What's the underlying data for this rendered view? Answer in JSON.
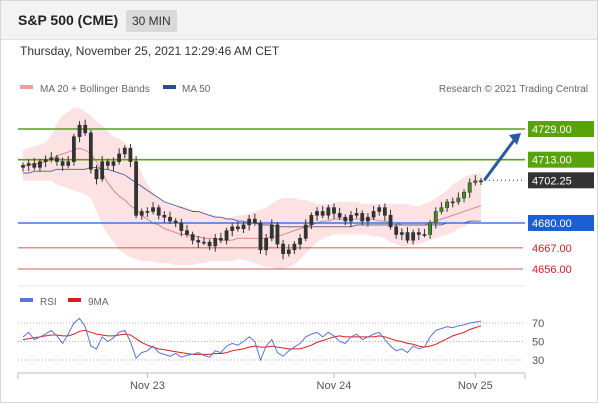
{
  "header": {
    "symbol": "S&P 500 (CME)",
    "timeframe": "30 MIN",
    "timestamp": "Thursday, November 25, 2021 12:29:46 AM CET"
  },
  "legend": {
    "ma20_label": "MA 20 + Bollinger Bands",
    "ma50_label": "MA 50",
    "credit": "Research © 2021 Trading Central",
    "rsi_label": "RSI",
    "ma9_label": "9MA"
  },
  "colors": {
    "resistance": "#58a20a",
    "pivot": "#1a5fd6",
    "support": "#d12020",
    "current": "#333333",
    "candle": "#333333",
    "bollinger_fill": "#fbd8d8",
    "ma20": "#e07c7c",
    "ma50": "#4a5e9c",
    "rsi": "#5b74d8",
    "rsi_ma9": "#d61f1f",
    "arrow": "#2c5aa0"
  },
  "chart_data": [
    {
      "type": "candlestick",
      "title": "S&P 500 (CME) 30 MIN",
      "x_tick_labels": [
        "Nov 23",
        "Nov 24",
        "Nov 25"
      ],
      "ylim": [
        4652,
        4745
      ],
      "levels": [
        {
          "label": "4729.00",
          "value": 4729.0,
          "kind": "resistance"
        },
        {
          "label": "4713.00",
          "value": 4713.0,
          "kind": "resistance"
        },
        {
          "label": "4702.25",
          "value": 4702.25,
          "kind": "current"
        },
        {
          "label": "4680.00",
          "value": 4680.0,
          "kind": "pivot"
        },
        {
          "label": "4667.00",
          "value": 4667.0,
          "kind": "support"
        },
        {
          "label": "4656.00",
          "value": 4656.0,
          "kind": "support"
        }
      ],
      "projection": {
        "from": 4702.25,
        "to": 4729.0,
        "direction": "up"
      },
      "close": [
        4710,
        4711,
        4709,
        4712,
        4713,
        4714,
        4712,
        4710,
        4712,
        4725,
        4731,
        4727,
        4708,
        4703,
        4712,
        4710,
        4712,
        4716,
        4719,
        4712,
        4684,
        4686,
        4686,
        4688,
        4684,
        4683,
        4681,
        4680,
        4676,
        4674,
        4671,
        4670,
        4670,
        4668,
        4672,
        4671,
        4676,
        4678,
        4677,
        4679,
        4682,
        4680,
        4666,
        4672,
        4679,
        4669,
        4664,
        4666,
        4669,
        4672,
        4679,
        4684,
        4686,
        4684,
        4688,
        4685,
        4683,
        4681,
        4684,
        4685,
        4681,
        4683,
        4686,
        4688,
        4684,
        4678,
        4674,
        4675,
        4671,
        4675,
        4674,
        4674,
        4680,
        4686,
        4688,
        4691,
        4691,
        4693,
        4696,
        4701,
        4702,
        4702
      ],
      "bollinger_upper": [
        4718,
        4719,
        4720,
        4721,
        4722,
        4726,
        4732,
        4736,
        4738,
        4740,
        4740,
        4738,
        4736,
        4733,
        4731,
        4728,
        4725,
        4724,
        4722,
        4718,
        4712,
        4706,
        4700,
        4696,
        4693,
        4691,
        4689,
        4688,
        4689,
        4688,
        4687,
        4686,
        4685,
        4684,
        4684,
        4683,
        4683,
        4683,
        4684,
        4684,
        4685,
        4686,
        4687,
        4688,
        4690,
        4692,
        4693,
        4693,
        4693,
        4692,
        4692,
        4691,
        4690,
        4690,
        4690,
        4690,
        4691,
        4691,
        4691,
        4691,
        4690,
        4690,
        4690,
        4690,
        4690,
        4690,
        4690,
        4690,
        4690,
        4689,
        4689,
        4690,
        4691,
        4693,
        4695,
        4697,
        4700,
        4702,
        4704,
        4705,
        4706,
        4706
      ],
      "bollinger_lower": [
        4702,
        4702,
        4702,
        4702,
        4702,
        4702,
        4700,
        4699,
        4698,
        4697,
        4696,
        4695,
        4693,
        4686,
        4679,
        4674,
        4670,
        4666,
        4664,
        4662,
        4661,
        4660,
        4660,
        4660,
        4659,
        4659,
        4659,
        4658,
        4658,
        4658,
        4658,
        4659,
        4659,
        4660,
        4660,
        4660,
        4660,
        4660,
        4661,
        4661,
        4660,
        4659,
        4658,
        4657,
        4657,
        4656,
        4656,
        4657,
        4658,
        4661,
        4664,
        4667,
        4670,
        4672,
        4673,
        4674,
        4674,
        4674,
        4674,
        4674,
        4674,
        4674,
        4673,
        4673,
        4672,
        4670,
        4669,
        4668,
        4668,
        4669,
        4669,
        4670,
        4671,
        4672,
        4673,
        4674,
        4675,
        4677,
        4678,
        4680,
        4681,
        4682
      ],
      "ma20": [
        4710,
        4710,
        4711,
        4711,
        4712,
        4713,
        4715,
        4716,
        4717,
        4718,
        4719,
        4718,
        4716,
        4712,
        4706,
        4701,
        4697,
        4694,
        4692,
        4689,
        4687,
        4684,
        4682,
        4680,
        4679,
        4677,
        4676,
        4675,
        4674,
        4674,
        4673,
        4673,
        4672,
        4672,
        4672,
        4671,
        4671,
        4671,
        4672,
        4672,
        4672,
        4672,
        4672,
        4672,
        4673,
        4673,
        4674,
        4675,
        4676,
        4677,
        4678,
        4679,
        4680,
        4681,
        4681,
        4682,
        4682,
        4682,
        4682,
        4682,
        4682,
        4682,
        4682,
        4681,
        4681,
        4680,
        4680,
        4679,
        4679,
        4679,
        4679,
        4679,
        4680,
        4681,
        4682,
        4683,
        4684,
        4685,
        4686,
        4687,
        4688,
        4689
      ],
      "ma50": [
        4706,
        4706,
        4707,
        4707,
        4707,
        4707,
        4708,
        4708,
        4708,
        4708,
        4708,
        4708,
        4709,
        4709,
        4708,
        4708,
        4707,
        4706,
        4705,
        4703,
        4701,
        4699,
        4697,
        4695,
        4693,
        4691,
        4690,
        4689,
        4688,
        4687,
        4686,
        4686,
        4685,
        4684,
        4683,
        4683,
        4682,
        4682,
        4681,
        4681,
        4680,
        4680,
        4679,
        4679,
        4679,
        4678,
        4678,
        4678,
        4678,
        4678,
        4678,
        4678,
        4678,
        4678,
        4678,
        4678,
        4678,
        4678,
        4678,
        4679,
        4679,
        4679,
        4679,
        4679,
        4679,
        4679,
        4679,
        4679,
        4679,
        4679,
        4679,
        4679,
        4679,
        4679,
        4679,
        4680,
        4680,
        4680,
        4680,
        4681,
        4681,
        4681
      ]
    },
    {
      "type": "line",
      "title": "RSI",
      "y_tick_labels": [
        "70",
        "50",
        "30"
      ],
      "ylim": [
        20,
        80
      ],
      "reference_levels": [
        70,
        50,
        30
      ],
      "series": [
        {
          "name": "RSI",
          "values": [
            55,
            60,
            52,
            55,
            58,
            62,
            56,
            48,
            58,
            70,
            75,
            66,
            45,
            42,
            55,
            50,
            54,
            60,
            62,
            50,
            32,
            38,
            40,
            45,
            38,
            36,
            34,
            37,
            33,
            35,
            36,
            38,
            35,
            33,
            40,
            38,
            45,
            48,
            46,
            50,
            55,
            50,
            30,
            45,
            52,
            38,
            34,
            40,
            44,
            48,
            55,
            58,
            60,
            55,
            60,
            56,
            50,
            48,
            55,
            58,
            52,
            55,
            58,
            60,
            52,
            45,
            40,
            42,
            38,
            45,
            42,
            44,
            55,
            62,
            64,
            66,
            65,
            67,
            68,
            70,
            71,
            72
          ]
        },
        {
          "name": "9MA",
          "values": [
            52,
            53,
            54,
            55,
            56,
            57,
            57,
            56,
            56,
            58,
            61,
            62,
            60,
            58,
            57,
            56,
            56,
            57,
            58,
            57,
            53,
            49,
            46,
            44,
            42,
            41,
            40,
            39,
            38,
            37,
            36,
            36,
            36,
            36,
            37,
            37,
            38,
            40,
            41,
            42,
            44,
            45,
            44,
            44,
            45,
            44,
            43,
            42,
            42,
            42,
            44,
            46,
            49,
            51,
            53,
            55,
            56,
            55,
            55,
            55,
            55,
            55,
            55,
            56,
            55,
            53,
            51,
            50,
            48,
            47,
            45,
            44,
            45,
            47,
            50,
            53,
            56,
            58,
            60,
            63,
            65,
            67
          ]
        }
      ]
    }
  ]
}
